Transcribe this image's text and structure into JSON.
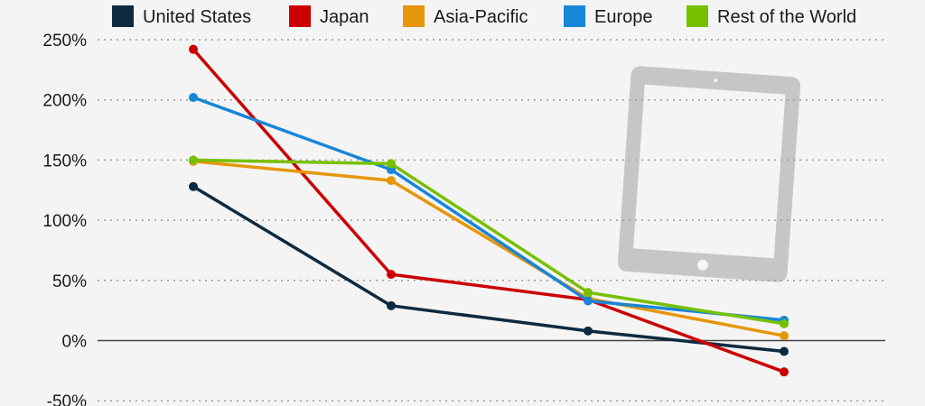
{
  "chart_data": {
    "type": "line",
    "x": [
      1,
      2,
      3,
      4
    ],
    "y_ticks": [
      "250%",
      "200%",
      "150%",
      "100%",
      "50%",
      "0%",
      "-50%"
    ],
    "y_tick_values": [
      250,
      200,
      150,
      100,
      50,
      0,
      -50
    ],
    "ylim": [
      -50,
      250
    ],
    "grid": true,
    "legend_position": "top",
    "series": [
      {
        "name": "United States",
        "color": "#0e2a40",
        "values": [
          128,
          29,
          8,
          -9
        ]
      },
      {
        "name": "Japan",
        "color": "#cc0000",
        "values": [
          242,
          55,
          34,
          -26
        ]
      },
      {
        "name": "Asia-Pacific",
        "color": "#e6960a",
        "values": [
          149,
          133,
          35,
          4
        ]
      },
      {
        "name": "Europe",
        "color": "#1786d8",
        "values": [
          202,
          142,
          33,
          17
        ]
      },
      {
        "name": "Rest of the World",
        "color": "#77c000",
        "values": [
          150,
          147,
          40,
          14
        ]
      }
    ]
  },
  "decoration": {
    "icon": "tablet-icon",
    "icon_color": "#c6c6c6"
  }
}
